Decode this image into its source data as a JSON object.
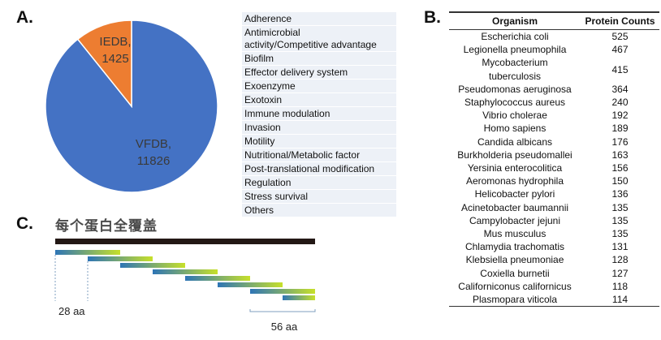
{
  "panels": {
    "a": "A.",
    "b": "B.",
    "c": "C."
  },
  "pie": {
    "slices": [
      {
        "label": "VFDB,",
        "value_text": "11826",
        "value": 11826,
        "color": "#4472c4"
      },
      {
        "label": "IEDB,",
        "value_text": "1425",
        "value": 1425,
        "color": "#ed7d31"
      }
    ]
  },
  "categories": [
    "Adherence",
    "Antimicrobial\nactivity/Competitive advantage",
    "Biofilm",
    "Effector delivery system",
    "Exoenzyme",
    "Exotoxin",
    "Immune modulation",
    "Invasion",
    "Motility",
    "Nutritional/Metabolic factor",
    "Post-translational modification",
    "Regulation",
    "Stress survival",
    "Others"
  ],
  "table": {
    "headers": [
      "Organism",
      "Protein Counts"
    ],
    "rows": [
      [
        "Escherichia coli",
        "525"
      ],
      [
        "Legionella pneumophila",
        "467"
      ],
      [
        "Mycobacterium\ntuberculosis",
        "415"
      ],
      [
        "Pseudomonas aeruginosa",
        "364"
      ],
      [
        "Staphylococcus aureus",
        "240"
      ],
      [
        "Vibrio cholerae",
        "192"
      ],
      [
        "Homo sapiens",
        "189"
      ],
      [
        "Candida albicans",
        "176"
      ],
      [
        "Burkholderia pseudomallei",
        "163"
      ],
      [
        "Yersinia enterocolitica",
        "156"
      ],
      [
        "Aeromonas hydrophila",
        "150"
      ],
      [
        "Helicobacter pylori",
        "136"
      ],
      [
        "Acinetobacter baumannii",
        "135"
      ],
      [
        "Campylobacter jejuni",
        "135"
      ],
      [
        "Mus musculus",
        "135"
      ],
      [
        "Chlamydia trachomatis",
        "131"
      ],
      [
        "Klebsiella pneumoniae",
        "128"
      ],
      [
        "Coxiella burnetii",
        "127"
      ],
      [
        "Californiconus californicus",
        "118"
      ],
      [
        "Plasmopara viticola",
        "114"
      ]
    ]
  },
  "coverage": {
    "title": "每个蛋白全覆盖",
    "label_window": "28 aa",
    "label_step": "56 aa",
    "fragment_count": 8,
    "colors": {
      "protein": "#231815",
      "start": "#2e75b6",
      "end": "#c7e02a",
      "guide": "#7f9fbf"
    }
  }
}
